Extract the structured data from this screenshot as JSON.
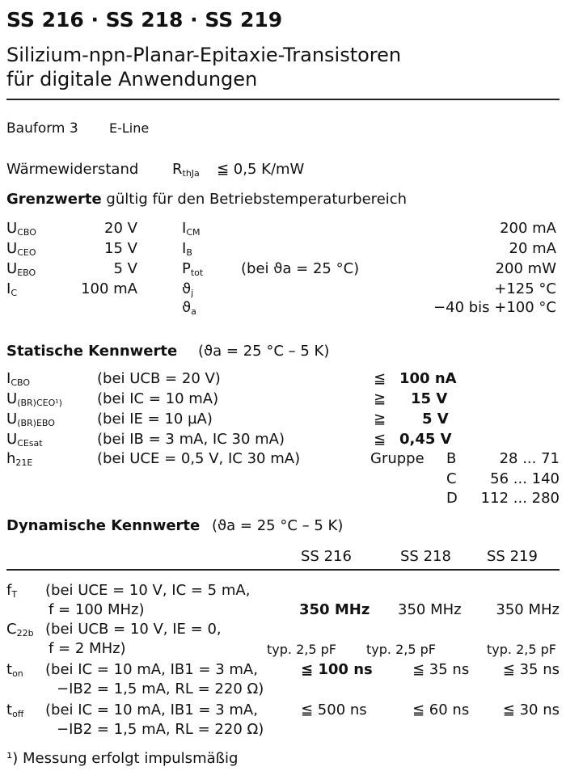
{
  "title": "SS 216 · SS 218 · SS 219",
  "subtitle": [
    "Silizium-npn-Planar-Epitaxie-Transistoren",
    "für digitale Anwendungen"
  ],
  "bauform": {
    "label": "Bauform 3",
    "value": "E-Line"
  },
  "waerme": {
    "label": "Wärmewiderstand",
    "sym": "R",
    "sub": "thJa",
    "value": "≦ 0,5 K/mW"
  },
  "grenz": {
    "heading_bold": "Grenzwerte",
    "heading_rest": "gültig für den Betriebstemperaturbereich",
    "left": [
      {
        "sym": "U",
        "sub": "CBO",
        "value": "20 V"
      },
      {
        "sym": "U",
        "sub": "CEO",
        "value": "15 V"
      },
      {
        "sym": "U",
        "sub": "EBO",
        "value": "5 V"
      },
      {
        "sym": "I",
        "sub": "C",
        "value": "100 mA"
      }
    ],
    "right": [
      {
        "sym": "I",
        "sub": "CM",
        "cond": "",
        "value": "200 mA"
      },
      {
        "sym": "I",
        "sub": "B",
        "cond": "",
        "value": "20 mA"
      },
      {
        "sym": "P",
        "sub": "tot",
        "cond": "(bei ϑa = 25 °C)",
        "value": "200 mW"
      },
      {
        "sym": "ϑ",
        "sub": "j",
        "cond": "",
        "value": "+125 °C"
      },
      {
        "sym": "ϑ",
        "sub": "a",
        "cond": "",
        "value": "−40 bis +100 °C"
      }
    ]
  },
  "statisch": {
    "heading": "Statische Kennwerte",
    "cond": "(ϑa = 25 °C – 5 K)",
    "rows": [
      {
        "sym": "I",
        "sub": "CBO",
        "cond": "(bei UCB = 20 V)",
        "rel": "≦",
        "value": "100 nA"
      },
      {
        "sym": "U",
        "sub": "(BR)CEO¹)",
        "cond": "(bei IC = 10 mA)",
        "rel": "≧",
        "value": "15 V"
      },
      {
        "sym": "U",
        "sub": "(BR)EBO",
        "cond": "(bei IE = 10 µA)",
        "rel": "≧",
        "value": "5 V"
      },
      {
        "sym": "U",
        "sub": "CEsat",
        "cond": "(bei IB = 3 mA, IC 30 mA)",
        "rel": "≦",
        "value": "0,45 V"
      },
      {
        "sym": "h",
        "sub": "21E",
        "cond": "(bei UCE = 0,5 V, IC 30 mA)",
        "rel": "",
        "value": ""
      }
    ],
    "gruppe_label": "Gruppe",
    "gruppen": [
      {
        "name": "B",
        "range": "28 ... 71"
      },
      {
        "name": "C",
        "range": "56 ... 140"
      },
      {
        "name": "D",
        "range": "112 ... 280"
      }
    ]
  },
  "dynamisch": {
    "heading": "Dynamische Kennwerte",
    "cond": "(ϑa = 25 °C – 5 K)",
    "columns": [
      "SS 216",
      "SS 218",
      "SS 219"
    ],
    "rows": [
      {
        "sym": "f",
        "sub": "T",
        "cond1": "(bei UCE = 10 V, IC = 5 mA,",
        "cond2": "f = 100 MHz)",
        "values": [
          "350 MHz",
          "350 MHz",
          "350 MHz"
        ]
      },
      {
        "sym": "C",
        "sub": "22b",
        "cond1": "(bei UCB = 10 V, IE = 0,",
        "cond2": "f = 2 MHz)",
        "values": [
          "typ. 2,5 pF",
          "typ. 2,5 pF",
          "typ. 2,5 pF"
        ]
      },
      {
        "sym": "t",
        "sub": "on",
        "cond1": "(bei IC = 10 mA, IB1 = 3 mA,",
        "cond2": "−IB2 = 1,5 mA, RL = 220 Ω)",
        "values": [
          "≦ 100 ns",
          "≦ 35 ns",
          "≦ 35 ns"
        ]
      },
      {
        "sym": "t",
        "sub": "off",
        "cond1": "(bei IC = 10 mA, IB1 = 3 mA,",
        "cond2": "−IB2 = 1,5 mA, RL = 220 Ω)",
        "values": [
          "≦ 500 ns",
          "≦ 60 ns",
          "≦ 30 ns"
        ]
      }
    ]
  },
  "footnote": "¹) Messung erfolgt impulsmäßig"
}
